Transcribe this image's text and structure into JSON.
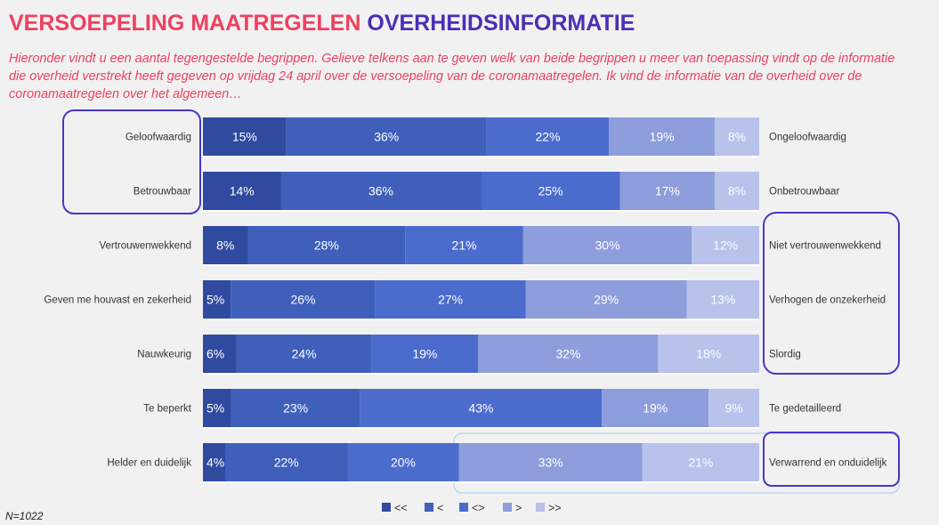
{
  "title_part1": "VERSOEPELING MAATREGELEN",
  "title_part2": "OVERHEIDSINFORMATIE",
  "subtitle": "Hieronder vindt u een aantal tegengestelde begrippen. Gelieve telkens aan te geven welk van beide begrippen u meer van toepassing vindt op de informatie die overheid verstrekt heeft gegeven op vrijdag 24 april over de versoepeling van de coronamaatregelen. Ik vind de informatie van de overheid over de coronamaatregelen over het algemeen…",
  "n_label": "N=1022",
  "colors": {
    "title_red": "#ef4060",
    "title_purple": "#4a2fb5",
    "highlight_border": "#4a35c8",
    "series": [
      "#2f4a9e",
      "#3f5fbb",
      "#4b6bcd",
      "#8e9ddb",
      "#b8c2ea"
    ]
  },
  "chart_data": {
    "type": "bar",
    "orientation": "horizontal",
    "stacked": true,
    "categories": [
      "Geloofwaardig",
      "Betrouwbaar",
      "Vertrouwenwekkend",
      "Geven me houvast en zekerheid",
      "Nauwkeurig",
      "Te beperkt",
      "Helder en duidelijk"
    ],
    "opposites": [
      "Ongeloofwaardig",
      "Onbetrouwbaar",
      "Niet vertrouwenwekkend",
      "Verhogen de onzekerheid",
      "Slordig",
      "Te gedetailleerd",
      "Verwarrend en onduidelijk"
    ],
    "series": [
      {
        "name": "<<",
        "values": [
          15,
          14,
          8,
          5,
          6,
          5,
          4
        ]
      },
      {
        "name": "<",
        "values": [
          36,
          36,
          28,
          26,
          24,
          23,
          22
        ]
      },
      {
        "name": "<>",
        "values": [
          22,
          25,
          21,
          27,
          19,
          43,
          20
        ]
      },
      {
        "name": ">",
        "values": [
          19,
          17,
          30,
          29,
          32,
          19,
          33
        ]
      },
      {
        "name": ">>",
        "values": [
          8,
          8,
          12,
          13,
          18,
          9,
          21
        ]
      }
    ],
    "value_suffix": "%",
    "legend_position": "bottom"
  }
}
